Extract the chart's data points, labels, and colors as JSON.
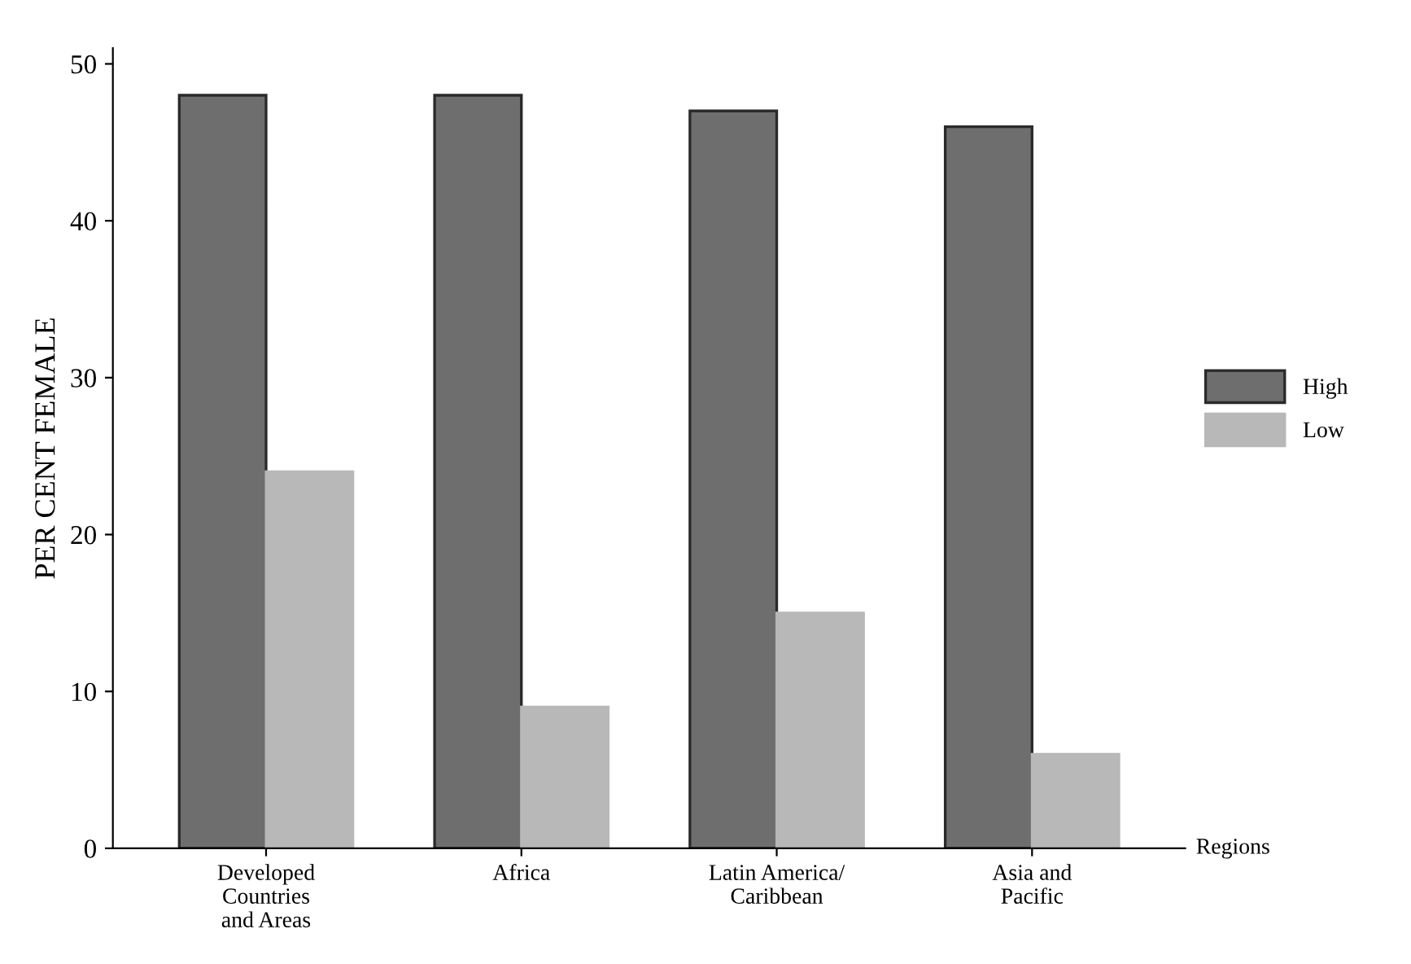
{
  "chart_data": {
    "type": "bar",
    "ylabel": "PER CENT FEMALE",
    "xlabel": "Regions",
    "categories": [
      "Developed\nCountries\nand Areas",
      "Africa",
      "Latin America/\nCaribbean",
      "Asia and\nPacific"
    ],
    "series": [
      {
        "name": "High",
        "color": "#6e6e6e",
        "values": [
          48,
          48,
          47,
          46
        ]
      },
      {
        "name": "Low",
        "color": "#b8b8b8",
        "values": [
          24,
          9,
          15,
          6
        ]
      }
    ],
    "ylim": [
      0,
      51
    ],
    "yticks": [
      0,
      10,
      20,
      30,
      40,
      50
    ],
    "grid": false,
    "legend": "right"
  }
}
